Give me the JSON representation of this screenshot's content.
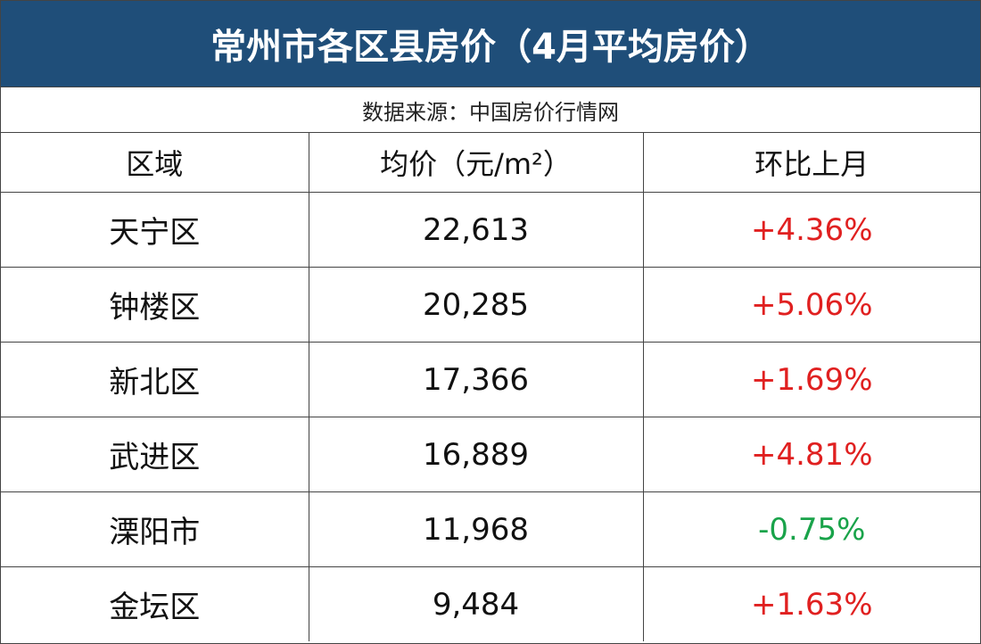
{
  "header": {
    "title": "常州市各区县房价（4月平均房价）",
    "source": "数据来源：中国房价行情网"
  },
  "table": {
    "columns": [
      "区域",
      "均价（元/m²）",
      "环比上月"
    ],
    "rows": [
      {
        "district": "天宁区",
        "price": "22,613",
        "change": "+4.36%",
        "change_color": "#e02020"
      },
      {
        "district": "钟楼区",
        "price": "20,285",
        "change": "+5.06%",
        "change_color": "#e02020"
      },
      {
        "district": "新北区",
        "price": "17,366",
        "change": "+1.69%",
        "change_color": "#e02020"
      },
      {
        "district": "武进区",
        "price": "16,889",
        "change": "+4.81%",
        "change_color": "#e02020"
      },
      {
        "district": "溧阳市",
        "price": "11,968",
        "change": "-0.75%",
        "change_color": "#19a34a"
      },
      {
        "district": "金坛区",
        "price": "9,484",
        "change": "+1.63%",
        "change_color": "#e02020"
      }
    ]
  }
}
